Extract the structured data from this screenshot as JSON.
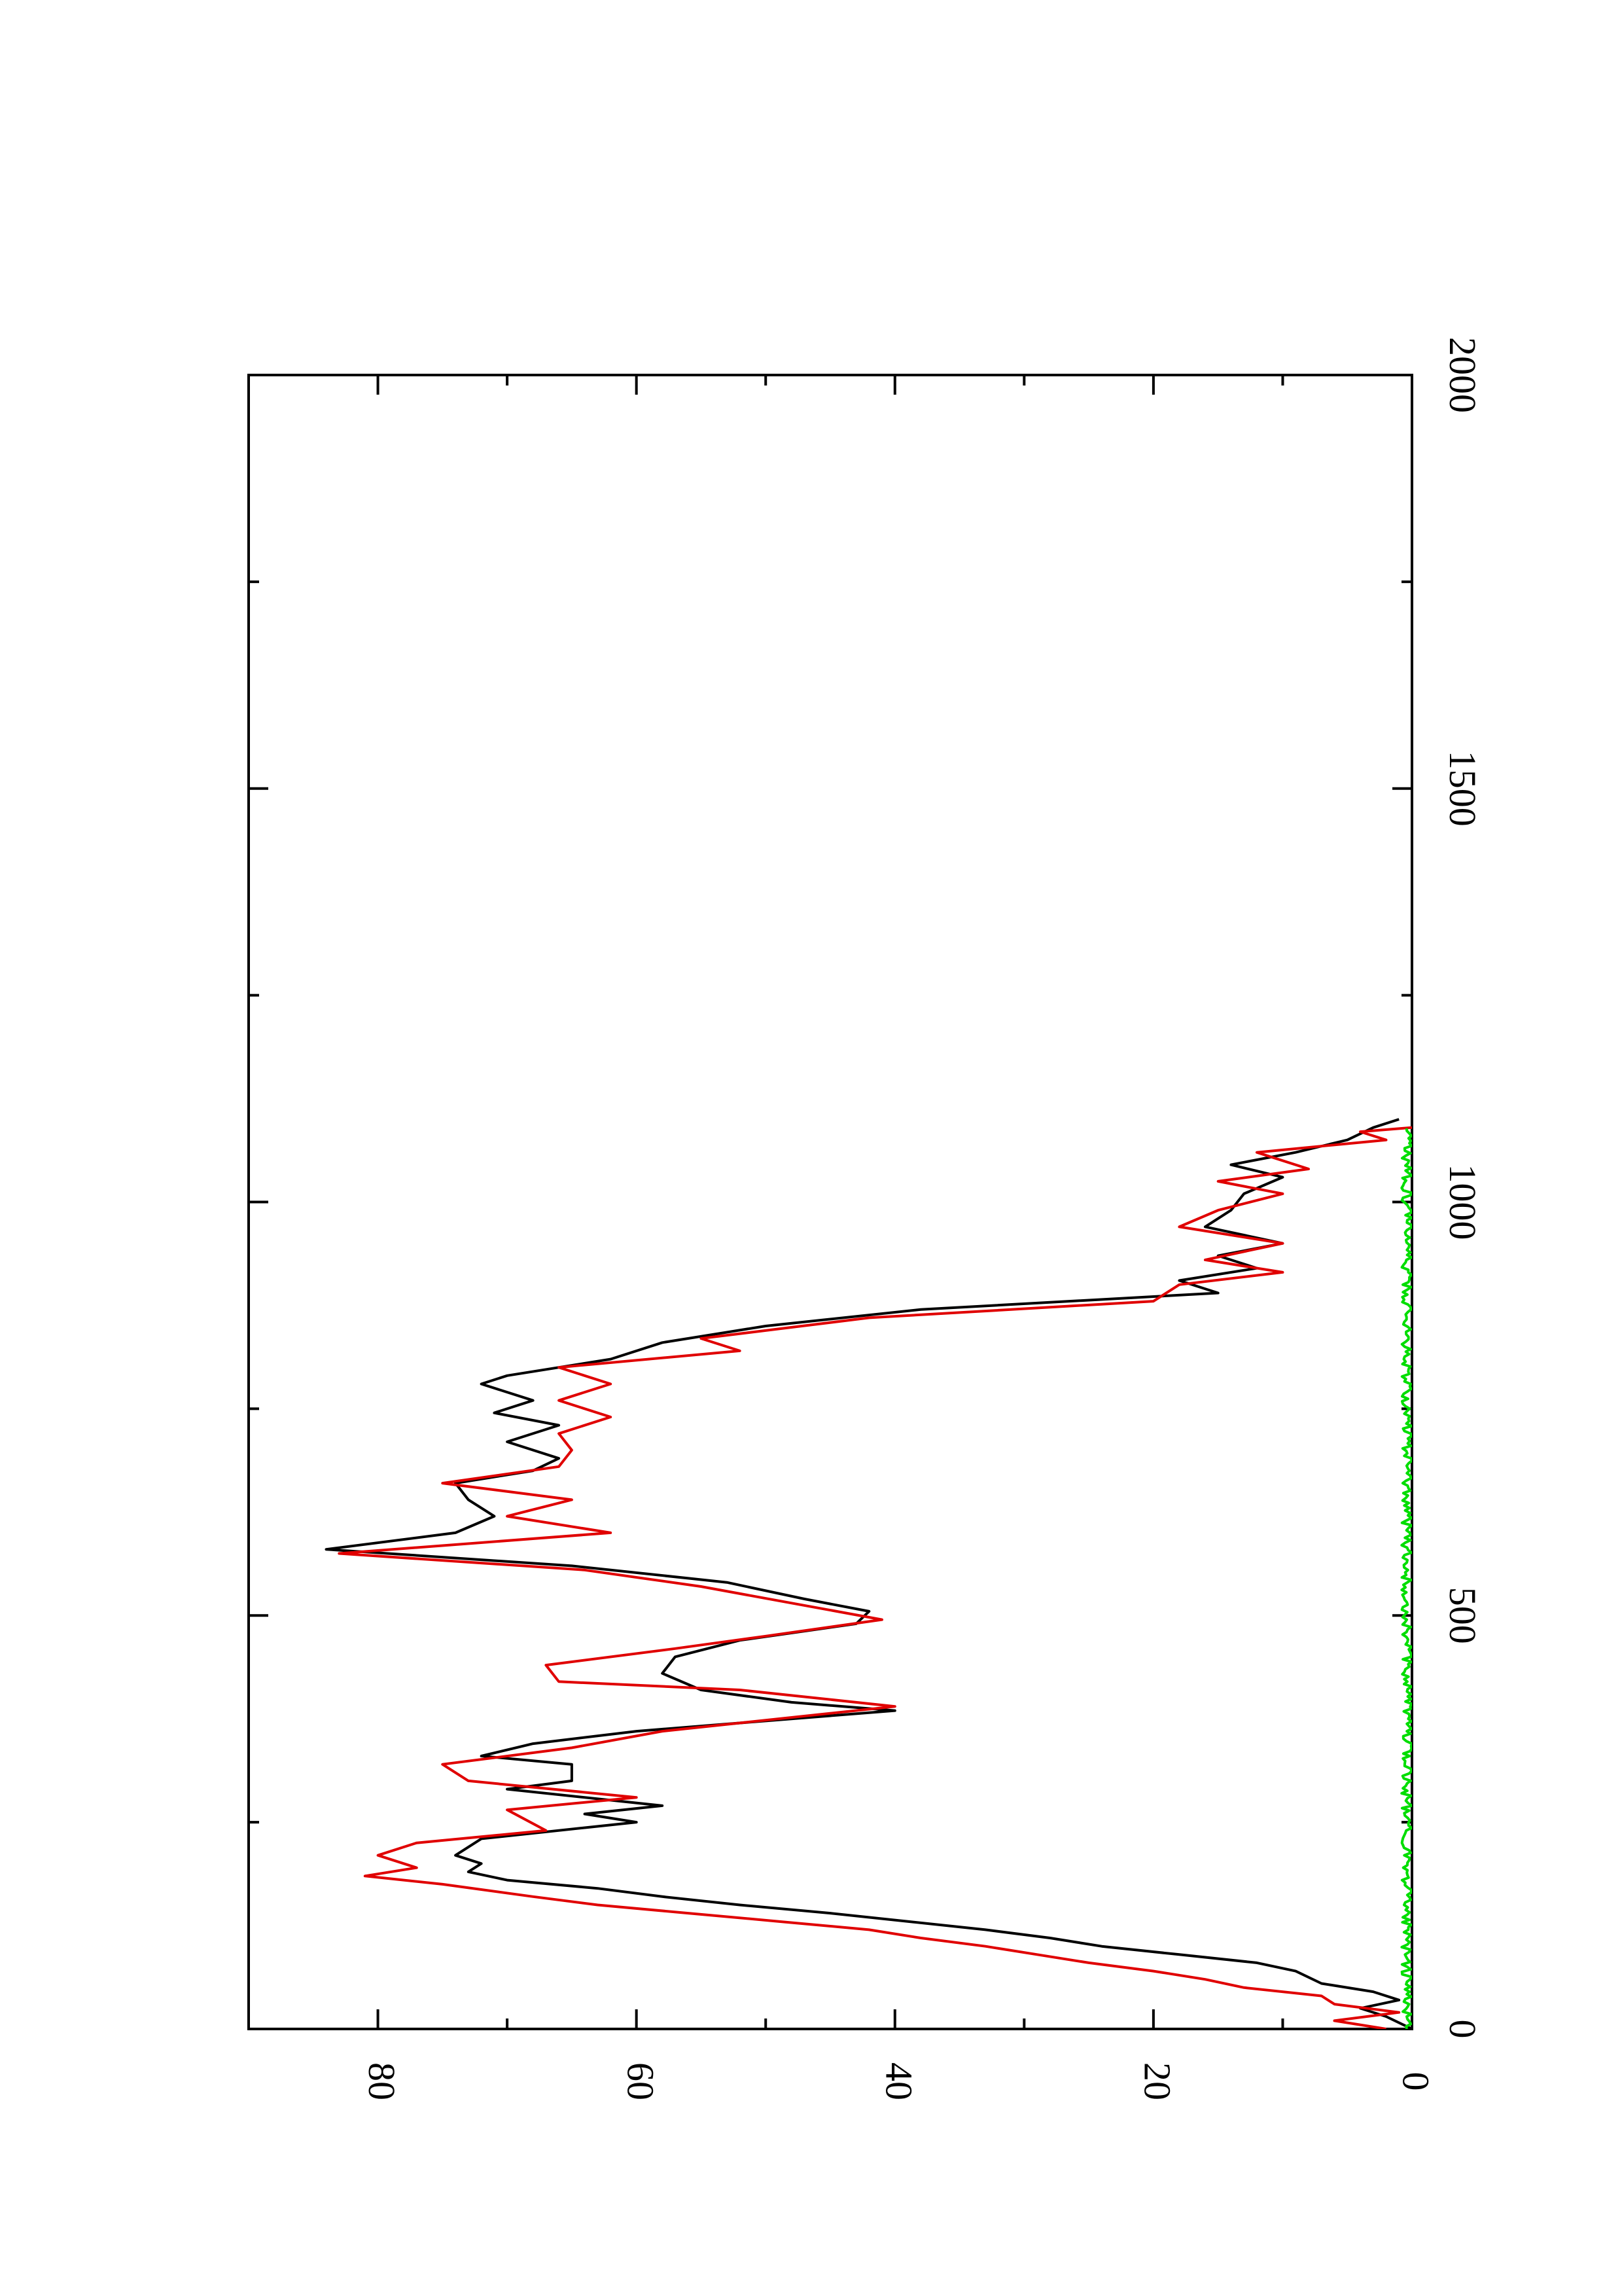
{
  "chart_data": {
    "type": "line",
    "orientation": "rotated-90-clockwise",
    "title": "",
    "xlabel": "",
    "ylabel": "",
    "xlim": [
      0,
      2000
    ],
    "ylim": [
      0,
      90
    ],
    "x_ticks": [
      0,
      500,
      1000,
      1500,
      2000
    ],
    "y_ticks": [
      0,
      20,
      40,
      60,
      80
    ],
    "x_minor_step": 250,
    "y_minor_step": 10,
    "grid": false,
    "legend": "none",
    "series": [
      {
        "color": "#000000",
        "points": [
          [
            0,
            0
          ],
          [
            15,
            2
          ],
          [
            25,
            4
          ],
          [
            35,
            1
          ],
          [
            45,
            3
          ],
          [
            55,
            7
          ],
          [
            70,
            9
          ],
          [
            80,
            12
          ],
          [
            90,
            18
          ],
          [
            100,
            24
          ],
          [
            110,
            28
          ],
          [
            120,
            33
          ],
          [
            130,
            39
          ],
          [
            140,
            45
          ],
          [
            150,
            52
          ],
          [
            160,
            58
          ],
          [
            170,
            63
          ],
          [
            180,
            70
          ],
          [
            190,
            73
          ],
          [
            200,
            72
          ],
          [
            210,
            74
          ],
          [
            230,
            72
          ],
          [
            250,
            60
          ],
          [
            260,
            64
          ],
          [
            270,
            58
          ],
          [
            290,
            70
          ],
          [
            300,
            65
          ],
          [
            320,
            65
          ],
          [
            330,
            72
          ],
          [
            345,
            68
          ],
          [
            360,
            60
          ],
          [
            385,
            40
          ],
          [
            395,
            48
          ],
          [
            410,
            55
          ],
          [
            430,
            58
          ],
          [
            450,
            57
          ],
          [
            470,
            52
          ],
          [
            490,
            43
          ],
          [
            505,
            42
          ],
          [
            520,
            47
          ],
          [
            540,
            53
          ],
          [
            560,
            65
          ],
          [
            580,
            84
          ],
          [
            600,
            74
          ],
          [
            620,
            71
          ],
          [
            640,
            73
          ],
          [
            660,
            74
          ],
          [
            675,
            68
          ],
          [
            690,
            66
          ],
          [
            710,
            70
          ],
          [
            730,
            66
          ],
          [
            745,
            71
          ],
          [
            760,
            68
          ],
          [
            780,
            72
          ],
          [
            790,
            70
          ],
          [
            810,
            62
          ],
          [
            830,
            58
          ],
          [
            850,
            50
          ],
          [
            870,
            38
          ],
          [
            890,
            15
          ],
          [
            905,
            18
          ],
          [
            920,
            12
          ],
          [
            935,
            15
          ],
          [
            950,
            10
          ],
          [
            970,
            16
          ],
          [
            990,
            14
          ],
          [
            1010,
            13
          ],
          [
            1030,
            10
          ],
          [
            1045,
            14
          ],
          [
            1060,
            9
          ],
          [
            1075,
            5
          ],
          [
            1090,
            3
          ],
          [
            1100,
            1
          ]
        ]
      },
      {
        "color": "#e00000",
        "points": [
          [
            0,
            2
          ],
          [
            10,
            6
          ],
          [
            20,
            1
          ],
          [
            30,
            6
          ],
          [
            40,
            7
          ],
          [
            50,
            13
          ],
          [
            60,
            16
          ],
          [
            70,
            20
          ],
          [
            80,
            25
          ],
          [
            90,
            29
          ],
          [
            100,
            33
          ],
          [
            110,
            38
          ],
          [
            120,
            42
          ],
          [
            130,
            49
          ],
          [
            140,
            56
          ],
          [
            150,
            63
          ],
          [
            160,
            68
          ],
          [
            175,
            75
          ],
          [
            185,
            81
          ],
          [
            195,
            77
          ],
          [
            210,
            80
          ],
          [
            225,
            77
          ],
          [
            240,
            67
          ],
          [
            265,
            70
          ],
          [
            280,
            60
          ],
          [
            300,
            73
          ],
          [
            320,
            75
          ],
          [
            340,
            65
          ],
          [
            360,
            58
          ],
          [
            390,
            40
          ],
          [
            410,
            52
          ],
          [
            420,
            66
          ],
          [
            440,
            67
          ],
          [
            460,
            57
          ],
          [
            475,
            50
          ],
          [
            495,
            41
          ],
          [
            515,
            48
          ],
          [
            535,
            55
          ],
          [
            555,
            64
          ],
          [
            575,
            83
          ],
          [
            600,
            62
          ],
          [
            620,
            70
          ],
          [
            640,
            65
          ],
          [
            660,
            75
          ],
          [
            680,
            66
          ],
          [
            700,
            65
          ],
          [
            720,
            66
          ],
          [
            740,
            62
          ],
          [
            760,
            66
          ],
          [
            780,
            62
          ],
          [
            800,
            66
          ],
          [
            820,
            52
          ],
          [
            835,
            55
          ],
          [
            860,
            42
          ],
          [
            880,
            20
          ],
          [
            900,
            18
          ],
          [
            915,
            10
          ],
          [
            930,
            16
          ],
          [
            950,
            10
          ],
          [
            970,
            18
          ],
          [
            990,
            15
          ],
          [
            1010,
            10
          ],
          [
            1025,
            15
          ],
          [
            1040,
            8
          ],
          [
            1060,
            12
          ],
          [
            1075,
            2
          ],
          [
            1085,
            4
          ],
          [
            1090,
            0
          ]
        ]
      },
      {
        "color": "#00dd00",
        "x_range": [
          0,
          1090
        ],
        "y_range": [
          0,
          0.8
        ]
      }
    ]
  }
}
